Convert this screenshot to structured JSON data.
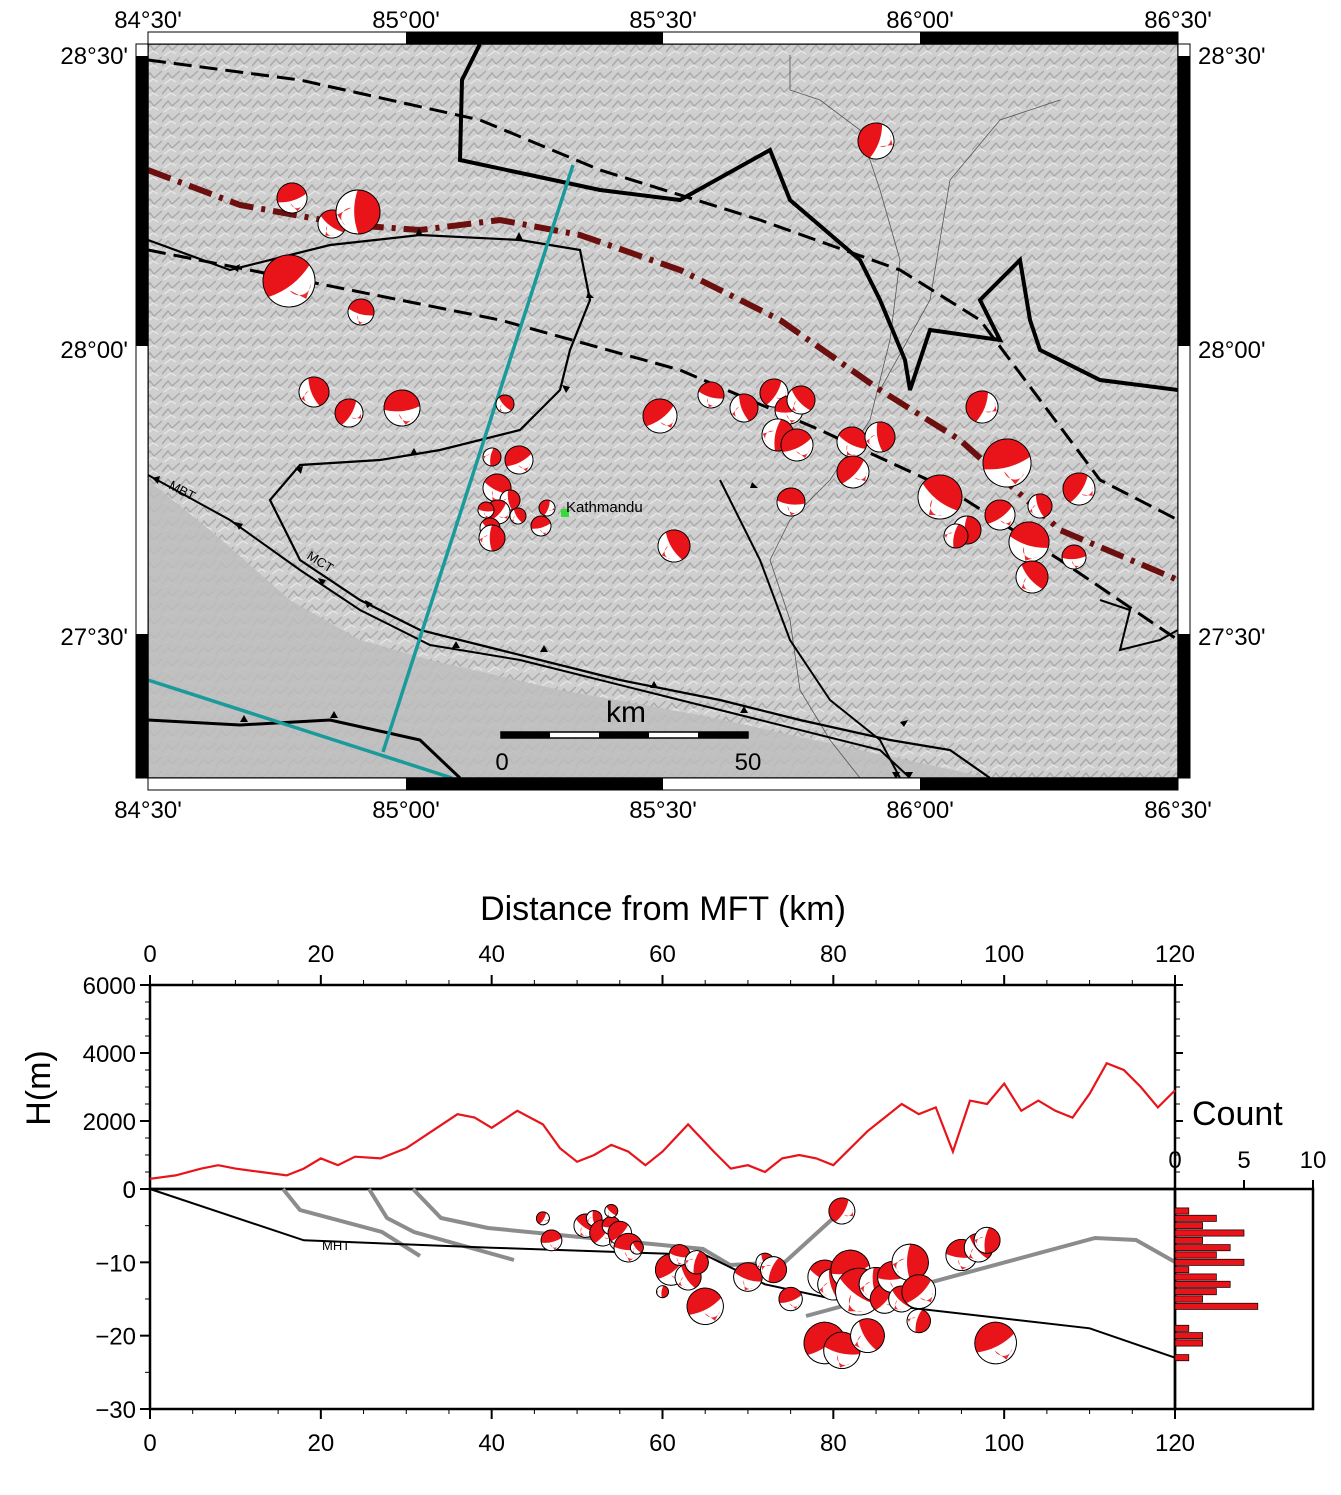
{
  "map": {
    "lon_labels": [
      "84°30'",
      "85°00'",
      "85°30'",
      "86°00'",
      "86°30'"
    ],
    "lat_labels": [
      "28°30'",
      "28°00'",
      "27°30'"
    ],
    "city": "Kathmandu",
    "fault_labels": {
      "mbt": "MBT",
      "mct": "MCT"
    },
    "scalebar": {
      "unit": "km",
      "start": "0",
      "end": "50"
    },
    "colors": {
      "beachball_fill": "#e8141a",
      "profile_line": "#1a9a9a",
      "stdt_line": "#6b0f0f",
      "city_marker": "#33dd33",
      "relief": "#c8c8c8"
    }
  },
  "chart_data": [
    {
      "type": "line",
      "title": "Distance from MFT (km)",
      "xlabel": "Distance from MFT (km)",
      "ylabel": "H(m)",
      "xlim": [
        0,
        120
      ],
      "ylim": [
        0,
        6000
      ],
      "x_ticks": [
        "0",
        "20",
        "40",
        "60",
        "80",
        "100",
        "120"
      ],
      "y_ticks": [
        "0",
        "2000",
        "4000",
        "6000"
      ],
      "series": [
        {
          "color": "#e8141a",
          "x": [
            0,
            3,
            6,
            8,
            10,
            13,
            16,
            18,
            20,
            22,
            24,
            27,
            30,
            33,
            36,
            38,
            40,
            43,
            46,
            48,
            50,
            52,
            54,
            56,
            58,
            60,
            63,
            66,
            68,
            70,
            72,
            74,
            76,
            78,
            80,
            82,
            84,
            86,
            88,
            90,
            92,
            94,
            96,
            98,
            100,
            102,
            104,
            106,
            108,
            110,
            112,
            114,
            116,
            118,
            120
          ],
          "y": [
            300,
            400,
            600,
            700,
            600,
            500,
            400,
            600,
            900,
            700,
            950,
            900,
            1200,
            1700,
            2200,
            2100,
            1800,
            2300,
            1900,
            1200,
            800,
            1000,
            1300,
            1100,
            700,
            1100,
            1900,
            1100,
            600,
            700,
            500,
            900,
            1000,
            900,
            700,
            1200,
            1700,
            2100,
            2500,
            2200,
            2400,
            1100,
            2600,
            2500,
            3100,
            2300,
            2600,
            2300,
            2100,
            2800,
            3700,
            3500,
            3000,
            2400,
            2900
          ]
        }
      ]
    },
    {
      "type": "scatter",
      "title": "",
      "xlabel": "",
      "ylabel": "",
      "xlim": [
        0,
        120
      ],
      "ylim": [
        -30,
        0
      ],
      "x_ticks": [
        "0",
        "20",
        "40",
        "60",
        "80",
        "100",
        "120"
      ],
      "y_ticks": [
        "0",
        "−10",
        "−20",
        "−30"
      ],
      "interface_label": "MHT",
      "mht": {
        "x": [
          0,
          18,
          40,
          65,
          72,
          80,
          110,
          120
        ],
        "y": [
          0,
          -7,
          -8,
          -9,
          -13,
          -15,
          -19,
          -23
        ]
      },
      "events": {
        "x": [
          46,
          47,
          51,
          52,
          53,
          54,
          54,
          55,
          55,
          56,
          57,
          60,
          61,
          62,
          63,
          64,
          65,
          70,
          72,
          73,
          75,
          79,
          80,
          81,
          82,
          83,
          85,
          86,
          87,
          88,
          89,
          90,
          95,
          97,
          98,
          79,
          81,
          84,
          90,
          99
        ],
        "y": [
          -4,
          -7,
          -5,
          -4,
          -6,
          -5,
          -3,
          -7,
          -6,
          -8,
          -8,
          -14,
          -11,
          -9,
          -12,
          -10,
          -16,
          -12,
          -10,
          -11,
          -15,
          -12,
          -13,
          -3,
          -11,
          -14,
          -13,
          -15,
          -12,
          -15,
          -10,
          -14,
          -9,
          -8,
          -7,
          -21,
          -22,
          -20,
          -18,
          -21
        ],
        "magnitude": [
          3.5,
          3.8,
          3.9,
          3.6,
          4.0,
          3.7,
          3.5,
          3.8,
          3.9,
          4.1,
          3.5,
          3.3,
          4.2,
          3.8,
          4.0,
          3.9,
          4.4,
          4.1,
          3.7,
          4.0,
          3.9,
          4.3,
          4.2,
          4.0,
          4.5,
          4.8,
          4.3,
          4.1,
          4.2,
          4.0,
          4.4,
          4.3,
          4.2,
          4.1,
          4.0,
          4.6,
          4.4,
          4.3,
          3.9,
          4.6
        ]
      }
    },
    {
      "type": "bar",
      "orientation": "horizontal",
      "title": "Count",
      "xlim": [
        0,
        10
      ],
      "x_ticks": [
        "0",
        "5",
        "10"
      ],
      "depth_bins": [
        -3,
        -4,
        -5,
        -6,
        -7,
        -8,
        -9,
        -10,
        -11,
        -12,
        -13,
        -14,
        -15,
        -16,
        -17,
        -18,
        -19,
        -20,
        -21,
        -22,
        -23
      ],
      "counts": [
        1,
        3,
        2,
        5,
        2,
        4,
        3,
        5,
        1,
        3,
        4,
        3,
        2,
        6,
        0,
        0,
        1,
        2,
        2,
        0,
        1
      ]
    }
  ]
}
